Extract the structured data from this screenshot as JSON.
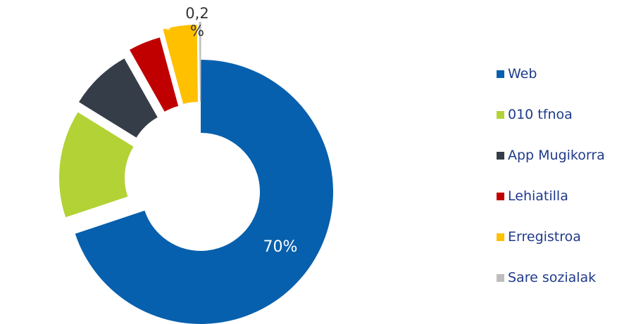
{
  "chart_data": {
    "type": "donut",
    "title": "",
    "legend_position": "right",
    "series": [
      {
        "name": "Web",
        "value": 70,
        "label": "70%",
        "color": "#0760ad"
      },
      {
        "name": "010 tfnoa",
        "value": 14,
        "label": "14%",
        "color": "#b2d235"
      },
      {
        "name": "App Mugikorra",
        "value": 8,
        "label": "8%",
        "color": "#353d48"
      },
      {
        "name": "Lehiatilla",
        "value": 4,
        "label": "4%",
        "color": "#c00000"
      },
      {
        "name": "Erregistroa",
        "value": 4,
        "label": "4%",
        "color": "#ffc000"
      },
      {
        "name": "Sare sozialak",
        "value": 0.2,
        "label_line1": "0,2",
        "label_line2": "%",
        "color": "#bdbdbd"
      }
    ]
  }
}
